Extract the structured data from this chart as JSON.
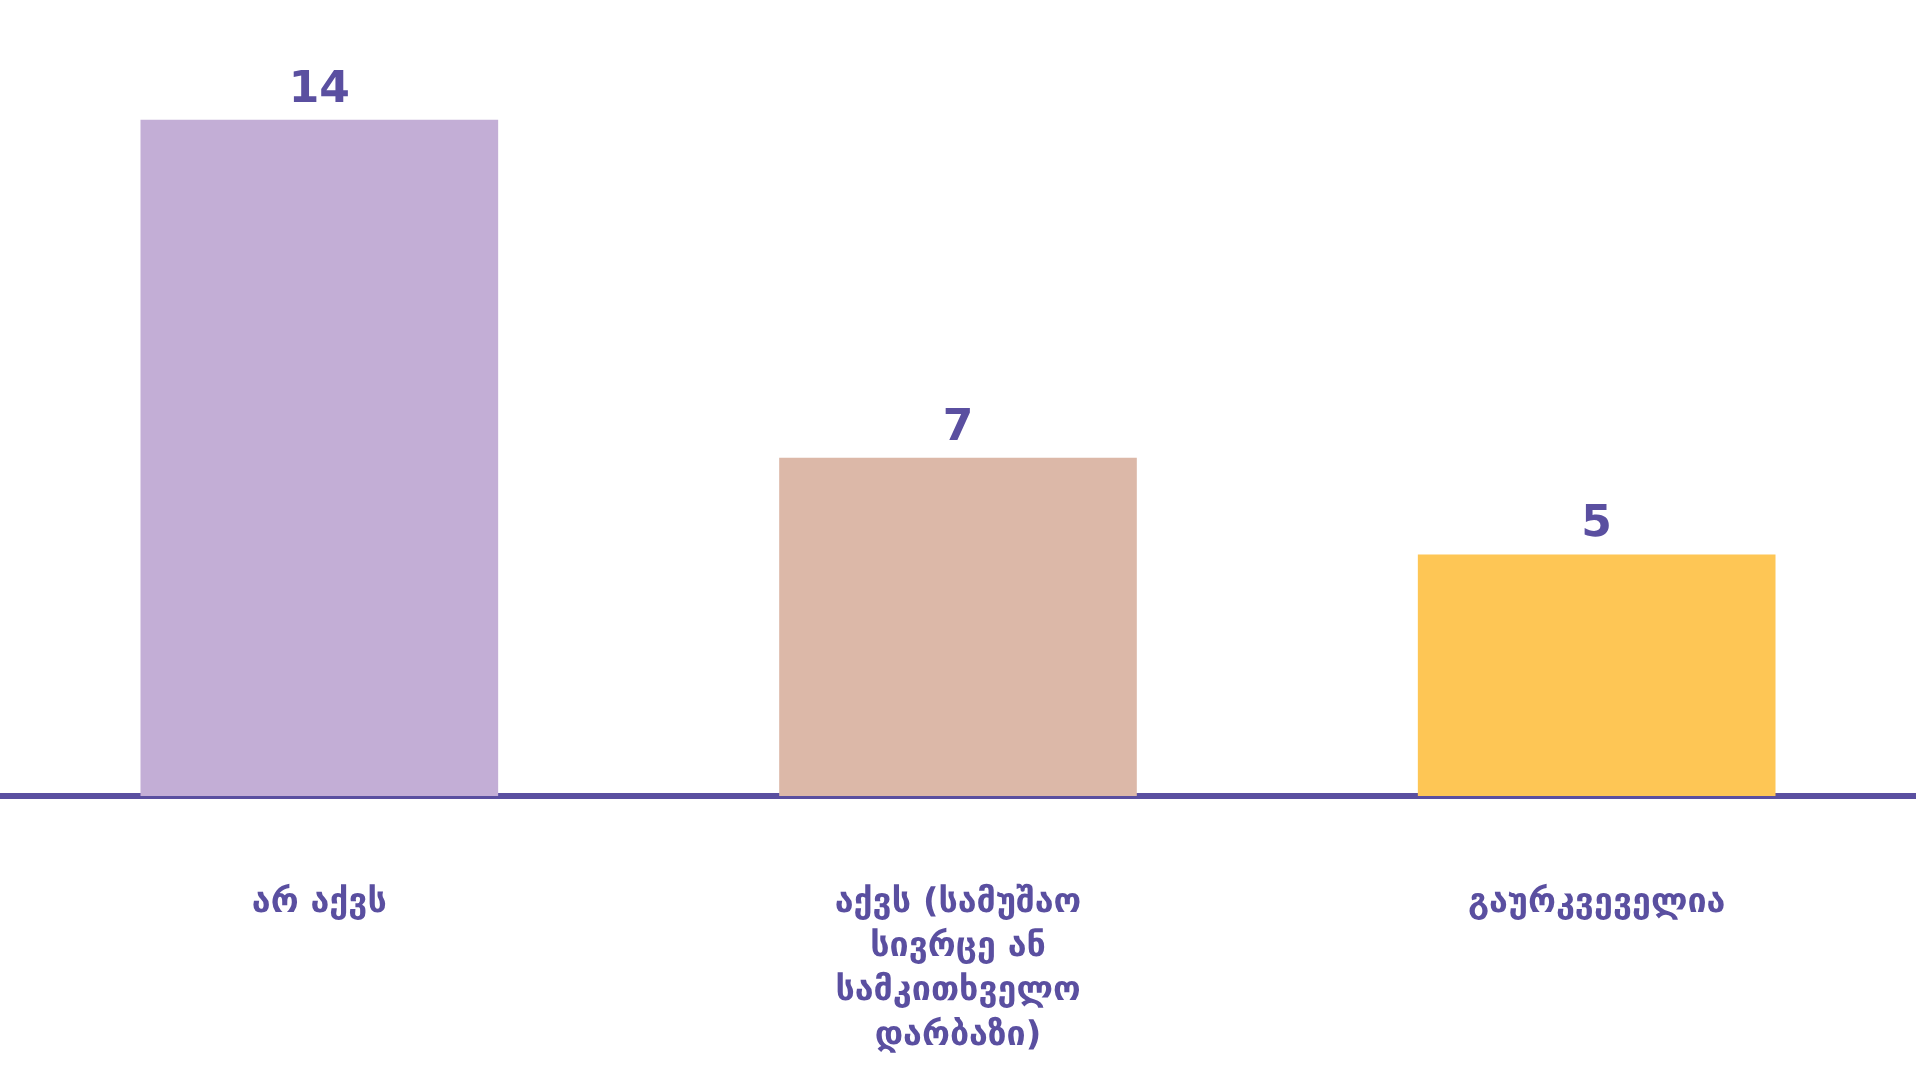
{
  "chart_data": {
    "type": "bar",
    "categories": [
      "არ აქვს",
      "აქვს (სამუშაო სივრცე ან სამკითხველო დარბაზი)",
      "გაურკვეველია"
    ],
    "values": [
      14,
      7,
      5
    ],
    "colors": [
      "#c3aed6",
      "#dcb8a8",
      "#fec655"
    ],
    "data_labels": true,
    "grid": false,
    "legend": false
  }
}
